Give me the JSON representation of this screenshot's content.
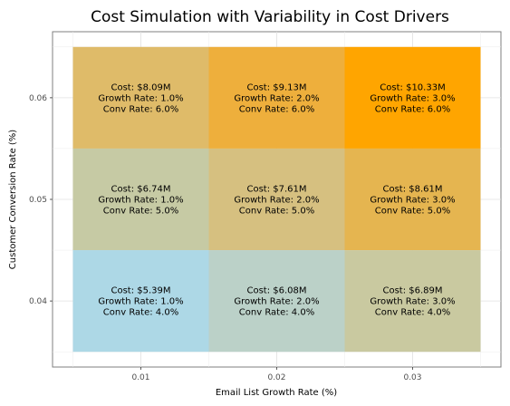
{
  "chart_data": {
    "type": "heatmap",
    "title": "Cost Simulation with Variability in Cost Drivers",
    "xlabel": "Email List Growth Rate (%)",
    "ylabel": "Customer Conversion Rate (%)",
    "x_categories": [
      0.01,
      0.02,
      0.03
    ],
    "y_categories": [
      0.04,
      0.05,
      0.06
    ],
    "x_tick_labels": [
      "0.01",
      "0.02",
      "0.03"
    ],
    "y_tick_labels": [
      "0.04",
      "0.05",
      "0.06"
    ],
    "xlim": [
      0.0035,
      0.0365
    ],
    "ylim": [
      0.0335,
      0.0665
    ],
    "grid": true,
    "cells": [
      {
        "x": 0.01,
        "y": 0.06,
        "cost": 8.09,
        "lines": [
          "Cost: $8.09M",
          "Growth Rate: 1.0%",
          "Conv Rate: 6.0%"
        ],
        "color": "#dfbb69"
      },
      {
        "x": 0.02,
        "y": 0.06,
        "cost": 9.13,
        "lines": [
          "Cost: $9.13M",
          "Growth Rate: 2.0%",
          "Conv Rate: 6.0%"
        ],
        "color": "#eeaf3c"
      },
      {
        "x": 0.03,
        "y": 0.06,
        "cost": 10.33,
        "lines": [
          "Cost: $10.33M",
          "Growth Rate: 3.0%",
          "Conv Rate: 6.0%"
        ],
        "color": "#ffa500"
      },
      {
        "x": 0.01,
        "y": 0.05,
        "cost": 6.74,
        "lines": [
          "Cost: $6.74M",
          "Growth Rate: 1.0%",
          "Conv Rate: 5.0%"
        ],
        "color": "#c6caa4"
      },
      {
        "x": 0.02,
        "y": 0.05,
        "cost": 7.61,
        "lines": [
          "Cost: $7.61M",
          "Growth Rate: 2.0%",
          "Conv Rate: 5.0%"
        ],
        "color": "#d6c080"
      },
      {
        "x": 0.03,
        "y": 0.05,
        "cost": 8.61,
        "lines": [
          "Cost: $8.61M",
          "Growth Rate: 3.0%",
          "Conv Rate: 5.0%"
        ],
        "color": "#e5b550"
      },
      {
        "x": 0.01,
        "y": 0.04,
        "cost": 5.39,
        "lines": [
          "Cost: $5.39M",
          "Growth Rate: 1.0%",
          "Conv Rate: 4.0%"
        ],
        "color": "#add8e6"
      },
      {
        "x": 0.02,
        "y": 0.04,
        "cost": 6.08,
        "lines": [
          "Cost: $6.08M",
          "Growth Rate: 2.0%",
          "Conv Rate: 4.0%"
        ],
        "color": "#bbd1c8"
      },
      {
        "x": 0.03,
        "y": 0.04,
        "cost": 6.89,
        "lines": [
          "Cost: $6.89M",
          "Growth Rate: 3.0%",
          "Conv Rate: 4.0%"
        ],
        "color": "#c9c9a0"
      }
    ]
  }
}
